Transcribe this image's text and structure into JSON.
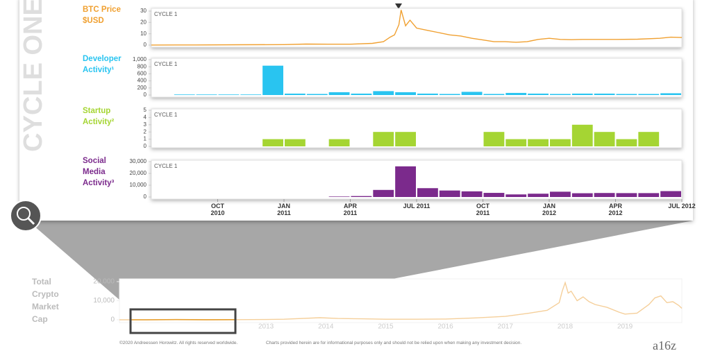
{
  "side_title": "CYCLE ONE",
  "chart_data": [
    {
      "type": "line",
      "title": "BTC Price $USD",
      "panel_label": "CYCLE 1",
      "color": "#f0a030",
      "x": [
        0,
        2,
        4,
        6,
        7,
        8,
        9,
        10,
        10.5,
        10.8,
        11,
        11.2,
        11.3,
        11.5,
        11.7,
        12,
        12.5,
        13,
        13.5,
        14,
        14.5,
        15,
        15.5,
        16,
        16.5,
        17,
        17.5,
        18,
        18.5,
        19,
        19.5,
        20,
        21,
        22,
        23,
        23.5,
        24
      ],
      "values": [
        0.07,
        0.1,
        0.3,
        0.4,
        0.9,
        0.8,
        0.8,
        1.5,
        3,
        7,
        9,
        18,
        31,
        17,
        22,
        15,
        13,
        11,
        9,
        8,
        6,
        4.5,
        3,
        3,
        2.5,
        3,
        5,
        6,
        5,
        4.8,
        5,
        5,
        5,
        5.2,
        6,
        7,
        6.7
      ],
      "xlim": [
        0,
        24
      ],
      "ylim": [
        0,
        30
      ],
      "yticks": [
        0,
        10,
        20,
        30
      ]
    },
    {
      "type": "bar",
      "title": "Developer Activity¹",
      "panel_label": "CYCLE 1",
      "color": "#29c4f0",
      "values": [
        0,
        15,
        15,
        15,
        15,
        830,
        40,
        30,
        80,
        40,
        110,
        80,
        40,
        30,
        90,
        30,
        60,
        40,
        30,
        40,
        40,
        30,
        30,
        50
      ],
      "xlim": [
        0,
        24
      ],
      "ylim": [
        0,
        1000
      ],
      "yticks": [
        0,
        200,
        400,
        600,
        800,
        {
          "value": 1000,
          "label": "1,000"
        }
      ]
    },
    {
      "type": "bar",
      "title": "Startup Activity²",
      "panel_label": "CYCLE 1",
      "color": "#a5d533",
      "values": [
        0,
        0,
        0,
        0,
        0,
        1,
        1,
        0,
        1,
        0,
        2,
        2,
        0,
        0,
        0,
        2,
        1,
        1,
        1,
        3,
        2,
        1,
        2,
        0
      ],
      "xlim": [
        0,
        24
      ],
      "ylim": [
        0,
        5
      ],
      "yticks": [
        0,
        1,
        2,
        3,
        4,
        5
      ]
    },
    {
      "type": "bar",
      "title": "Social Media Activity³",
      "panel_label": "CYCLE 1",
      "color": "#7b2a8c",
      "values": [
        0,
        0,
        0,
        0,
        0,
        0,
        0,
        0,
        400,
        800,
        6000,
        26000,
        7500,
        5500,
        4800,
        3500,
        2200,
        2800,
        4500,
        3200,
        3400,
        3300,
        3300,
        5000
      ],
      "xlim": [
        0,
        24
      ],
      "ylim": [
        0,
        30000
      ],
      "yticks": [
        0,
        {
          "value": 10000,
          "label": "10,000"
        },
        {
          "value": 20000,
          "label": "20,000"
        },
        {
          "value": 30000,
          "label": "30,000"
        }
      ],
      "xticks": [
        {
          "value": 3,
          "label": "OCT 2010"
        },
        {
          "value": 6,
          "label": "JAN 2011"
        },
        {
          "value": 9,
          "label": "APR 2011"
        },
        {
          "value": 12,
          "label": "JUL 2011"
        },
        {
          "value": 15,
          "label": "OCT 2011"
        },
        {
          "value": 18,
          "label": "JAN 2012"
        },
        {
          "value": 21,
          "label": "APR 2012"
        },
        {
          "value": 24,
          "label": "JUL 2012"
        }
      ]
    },
    {
      "type": "line",
      "title": "Total Crypto Market Cap",
      "color": "#f5cf9a",
      "x": [
        2010.55,
        2011,
        2011.5,
        2012,
        2012.5,
        2013,
        2013.3,
        2013.9,
        2014.2,
        2014.6,
        2015,
        2015.5,
        2016,
        2016.5,
        2017,
        2017.4,
        2017.7,
        2017.9,
        2017.95,
        2018.0,
        2018.05,
        2018.1,
        2018.2,
        2018.3,
        2018.4,
        2018.5,
        2018.7,
        2018.9,
        2019.0,
        2019.2,
        2019.4,
        2019.5,
        2019.6,
        2019.7,
        2019.8,
        2019.9,
        2019.95
      ],
      "values": [
        0,
        5,
        100,
        50,
        80,
        150,
        300,
        1100,
        700,
        500,
        300,
        300,
        400,
        1000,
        1800,
        3500,
        5000,
        9000,
        15000,
        19500,
        14000,
        15000,
        10000,
        12000,
        9500,
        8000,
        6500,
        4000,
        3000,
        3500,
        8000,
        11500,
        12500,
        9000,
        9500,
        7500,
        6000
      ],
      "xlim": [
        2010.55,
        2019.95
      ],
      "ylim": [
        0,
        20000
      ],
      "yticks": [
        0,
        {
          "value": 10000,
          "label": "10,000"
        },
        {
          "value": 20000,
          "label": "20,000"
        }
      ],
      "xticks": [
        2013,
        2014,
        2015,
        2016,
        2017,
        2018,
        2019
      ]
    }
  ],
  "footer": [
    "©2020 Andreessen Horowitz. All rights reserved worldwide.",
    "Charts provided herein are for informational purposes only and should not be relied upon when making any investment decision."
  ],
  "logo": "a16z"
}
